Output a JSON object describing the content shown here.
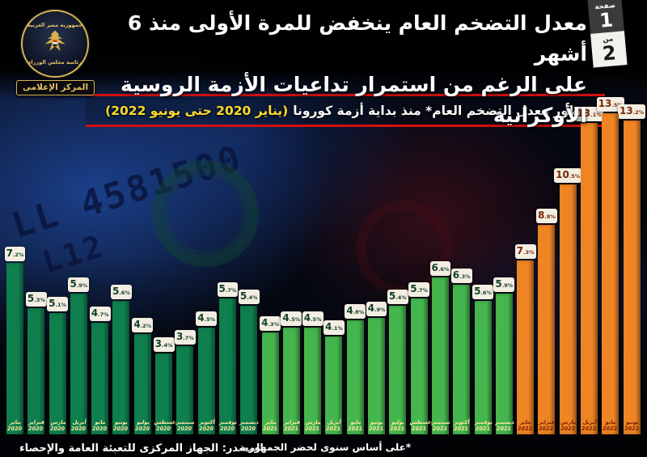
{
  "header": {
    "title_line1": "معدل التضخم العام ينخفض للمرة الأولى منذ 6 أشهر",
    "title_line2": "على الرغم من استمرار تداعيات الأزمة الروسية الأوكرانية",
    "page_badge": {
      "page_word": "صفحة",
      "page_number": "1",
      "of_word": "من",
      "total_pages": "2"
    },
    "logo": {
      "top_text": "جمهورية مصر العربية",
      "bottom_text": "رئاسة مجلس الوزراء",
      "ribbon_text": "المركز الإعلامى"
    }
  },
  "banner": {
    "text": "تطور معدل التضخم العام* منذ بداية أزمة كورونا",
    "date_range": "(يناير 2020 حتى يونيو 2022)"
  },
  "chart_data": {
    "type": "bar",
    "title": "تطور معدل التضخم العام منذ بداية أزمة كورونا (يناير 2020 حتى يونيو 2022)",
    "unit": "%",
    "ylim": [
      0,
      14
    ],
    "grid": false,
    "legend": false,
    "groups": {
      "y2020": {
        "bar": "#0f7f4e",
        "value_text": "#123f2a",
        "month_text": "#ffe79e"
      },
      "y2021": {
        "bar": "#45b64e",
        "value_text": "#123f2a",
        "month_text": "#ffe79e"
      },
      "y2022": {
        "bar": "#ef8424",
        "value_text": "#7a2800",
        "month_text": "#7a1e00"
      }
    },
    "points": [
      {
        "month": "يناير",
        "year": "2020",
        "value": 7.2,
        "group": "y2020"
      },
      {
        "month": "فبراير",
        "year": "2020",
        "value": 5.3,
        "group": "y2020"
      },
      {
        "month": "مارس",
        "year": "2020",
        "value": 5.1,
        "group": "y2020"
      },
      {
        "month": "أبريل",
        "year": "2020",
        "value": 5.9,
        "group": "y2020"
      },
      {
        "month": "مايو",
        "year": "2020",
        "value": 4.7,
        "group": "y2020"
      },
      {
        "month": "يونيو",
        "year": "2020",
        "value": 5.6,
        "group": "y2020"
      },
      {
        "month": "يوليو",
        "year": "2020",
        "value": 4.2,
        "group": "y2020"
      },
      {
        "month": "أغسطس",
        "year": "2020",
        "value": 3.4,
        "group": "y2020"
      },
      {
        "month": "سبتمبر",
        "year": "2020",
        "value": 3.7,
        "group": "y2020"
      },
      {
        "month": "أكتوبر",
        "year": "2020",
        "value": 4.5,
        "group": "y2020"
      },
      {
        "month": "نوفمبر",
        "year": "2020",
        "value": 5.7,
        "group": "y2020"
      },
      {
        "month": "ديسمبر",
        "year": "2020",
        "value": 5.4,
        "group": "y2020"
      },
      {
        "month": "يناير",
        "year": "2021",
        "value": 4.3,
        "group": "y2021"
      },
      {
        "month": "فبراير",
        "year": "2021",
        "value": 4.5,
        "group": "y2021"
      },
      {
        "month": "مارس",
        "year": "2021",
        "value": 4.5,
        "group": "y2021"
      },
      {
        "month": "أبريل",
        "year": "2021",
        "value": 4.1,
        "group": "y2021"
      },
      {
        "month": "مايو",
        "year": "2021",
        "value": 4.8,
        "group": "y2021"
      },
      {
        "month": "يونيو",
        "year": "2021",
        "value": 4.9,
        "group": "y2021"
      },
      {
        "month": "يوليو",
        "year": "2021",
        "value": 5.4,
        "group": "y2021"
      },
      {
        "month": "أغسطس",
        "year": "2021",
        "value": 5.7,
        "group": "y2021"
      },
      {
        "month": "سبتمبر",
        "year": "2021",
        "value": 6.6,
        "group": "y2021"
      },
      {
        "month": "أكتوبر",
        "year": "2021",
        "value": 6.3,
        "group": "y2021"
      },
      {
        "month": "نوفمبر",
        "year": "2021",
        "value": 5.6,
        "group": "y2021"
      },
      {
        "month": "ديسمبر",
        "year": "2021",
        "value": 5.9,
        "group": "y2021"
      },
      {
        "month": "يناير",
        "year": "2022",
        "value": 7.3,
        "group": "y2022"
      },
      {
        "month": "فبراير",
        "year": "2022",
        "value": 8.8,
        "group": "y2022"
      },
      {
        "month": "مارس",
        "year": "2022",
        "value": 10.5,
        "group": "y2022"
      },
      {
        "month": "أبريل",
        "year": "2022",
        "value": 13.1,
        "group": "y2022"
      },
      {
        "month": "مايو",
        "year": "2022",
        "value": 13.5,
        "group": "y2022"
      },
      {
        "month": "يونيو",
        "year": "2022",
        "value": 13.2,
        "group": "y2022"
      }
    ]
  },
  "footer": {
    "source": "المصدر: الجهاز المركزى للتعبئة العامة والإحصاء",
    "footnote": "*على أساس سنوى لحضر الجمهورية"
  },
  "background_decor": {
    "serial_line1": "LL 4581500",
    "serial_line2": "L12"
  },
  "accent_colors": {
    "banner_border": "#d40f0f",
    "banner_date": "#ffd92a"
  }
}
